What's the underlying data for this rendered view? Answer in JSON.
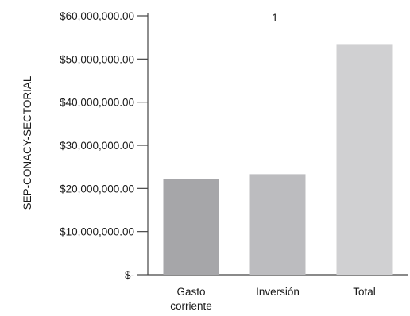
{
  "chart_data": {
    "type": "bar",
    "title": "1",
    "ylabel": "SEP-CONACY-SECTORIAL",
    "xlabel": "",
    "categories": [
      [
        "Gasto",
        "corriente"
      ],
      [
        "Inversión"
      ],
      [
        "Total"
      ]
    ],
    "values": [
      22200000,
      23300000,
      53300000
    ],
    "colors": [
      "#a6a6a9",
      "#bcbcbf",
      "#d0d0d2"
    ],
    "ylim": [
      0,
      60000000
    ],
    "yticks": [
      0,
      10000000,
      20000000,
      30000000,
      40000000,
      50000000,
      60000000
    ],
    "ytick_labels": [
      "$-",
      "$10,000,000.00",
      "$20,000,000.00",
      "$30,000,000.00",
      "$40,000,000.00",
      "$50,000,000.00",
      "$60,000,000.00"
    ],
    "grid": false,
    "legend": "none"
  }
}
